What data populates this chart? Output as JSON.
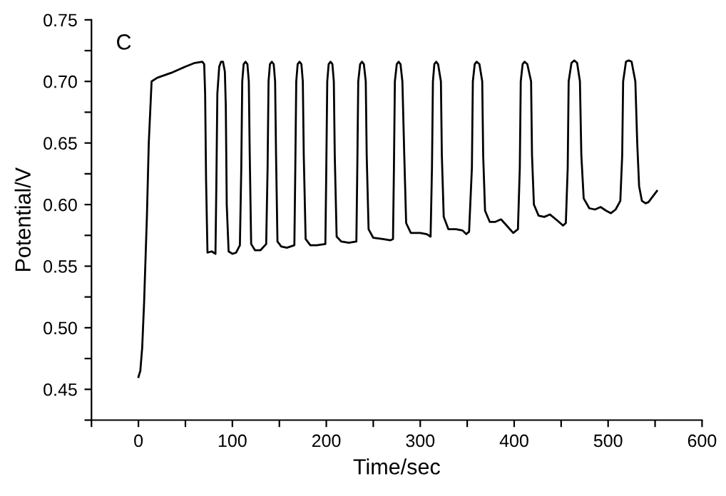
{
  "chart_data": {
    "type": "line",
    "xlabel": "Time/sec",
    "ylabel": "Potential/V",
    "annotations": [
      "C"
    ],
    "xlim": [
      -50,
      600
    ],
    "ylim": [
      0.425,
      0.75
    ],
    "xticks": [
      {
        "value": -50,
        "label": null
      },
      0,
      {
        "value": 50,
        "label": null
      },
      100,
      {
        "value": 150,
        "label": null
      },
      200,
      {
        "value": 250,
        "label": null
      },
      300,
      {
        "value": 350,
        "label": null
      },
      400,
      {
        "value": 450,
        "label": null
      },
      500,
      {
        "value": 550,
        "label": null
      },
      600
    ],
    "yticks": [
      {
        "value": 0.425,
        "label": null
      },
      {
        "value": 0.45,
        "label": "0.45"
      },
      {
        "value": 0.475,
        "label": null
      },
      {
        "value": 0.5,
        "label": "0.50"
      },
      {
        "value": 0.525,
        "label": null
      },
      {
        "value": 0.55,
        "label": "0.55"
      },
      {
        "value": 0.575,
        "label": null
      },
      {
        "value": 0.6,
        "label": "0.60"
      },
      {
        "value": 0.625,
        "label": null
      },
      {
        "value": 0.65,
        "label": "0.65"
      },
      {
        "value": 0.675,
        "label": null
      },
      {
        "value": 0.7,
        "label": "0.70"
      },
      {
        "value": 0.725,
        "label": null
      },
      {
        "value": 0.75,
        "label": "0.75"
      }
    ],
    "grid": false,
    "marker": "none",
    "line_style": "solid",
    "series": [
      {
        "color": "#000000",
        "x": [
          0,
          2,
          4,
          6,
          9,
          11,
          14,
          20,
          35,
          50,
          60,
          68,
          70,
          71,
          72,
          73.5,
          78,
          80,
          82,
          83,
          84,
          86,
          88,
          90,
          92,
          93,
          94,
          96,
          100,
          104,
          108,
          109.5,
          110.5,
          112,
          114,
          116,
          117.5,
          118.5,
          120,
          124,
          130,
          136,
          137.5,
          138.5,
          140,
          142,
          144,
          145.5,
          146.5,
          148,
          152,
          158,
          166,
          167,
          168,
          169.5,
          171.5,
          173.5,
          175,
          176,
          178,
          183,
          190,
          199,
          200,
          201,
          202.5,
          204.5,
          206.5,
          208,
          209,
          211,
          216,
          224,
          232,
          233,
          234,
          236,
          238,
          240,
          242,
          243,
          245,
          250,
          260,
          268,
          271,
          272,
          273,
          275,
          277,
          279,
          281,
          283,
          285,
          290,
          300,
          307,
          311,
          312.5,
          313.5,
          315,
          317,
          319,
          322,
          323,
          325,
          330,
          338,
          345,
          349,
          352,
          355,
          356,
          358,
          360,
          363,
          366,
          367,
          369,
          374,
          380,
          386,
          392,
          399,
          404,
          406,
          407,
          409,
          411,
          414,
          418,
          419,
          421,
          426,
          432,
          438,
          446,
          452,
          455,
          457,
          458,
          461,
          464,
          467,
          470,
          471.5,
          474,
          480,
          486,
          492,
          498,
          503,
          508,
          513,
          515,
          516,
          519,
          522,
          525,
          529,
          531,
          533,
          536,
          540,
          543,
          547,
          552
        ],
        "values": [
          0.46,
          0.465,
          0.484,
          0.52,
          0.59,
          0.65,
          0.7,
          0.703,
          0.707,
          0.712,
          0.715,
          0.716,
          0.714,
          0.69,
          0.62,
          0.561,
          0.562,
          0.561,
          0.56,
          0.62,
          0.69,
          0.712,
          0.716,
          0.716,
          0.708,
          0.68,
          0.6,
          0.562,
          0.56,
          0.561,
          0.567,
          0.63,
          0.7,
          0.714,
          0.716,
          0.714,
          0.7,
          0.64,
          0.568,
          0.563,
          0.563,
          0.568,
          0.63,
          0.7,
          0.714,
          0.716,
          0.714,
          0.7,
          0.64,
          0.57,
          0.566,
          0.565,
          0.567,
          0.63,
          0.7,
          0.714,
          0.716,
          0.714,
          0.7,
          0.64,
          0.572,
          0.567,
          0.567,
          0.568,
          0.63,
          0.7,
          0.714,
          0.716,
          0.714,
          0.7,
          0.64,
          0.574,
          0.57,
          0.569,
          0.57,
          0.63,
          0.7,
          0.714,
          0.716,
          0.714,
          0.7,
          0.64,
          0.58,
          0.573,
          0.572,
          0.571,
          0.572,
          0.63,
          0.7,
          0.714,
          0.716,
          0.714,
          0.7,
          0.64,
          0.585,
          0.577,
          0.577,
          0.576,
          0.574,
          0.63,
          0.7,
          0.714,
          0.716,
          0.714,
          0.7,
          0.64,
          0.59,
          0.58,
          0.58,
          0.579,
          0.576,
          0.578,
          0.63,
          0.7,
          0.714,
          0.716,
          0.714,
          0.7,
          0.64,
          0.595,
          0.586,
          0.586,
          0.588,
          0.583,
          0.577,
          0.58,
          0.63,
          0.7,
          0.714,
          0.716,
          0.714,
          0.7,
          0.64,
          0.6,
          0.591,
          0.59,
          0.592,
          0.587,
          0.583,
          0.585,
          0.63,
          0.7,
          0.715,
          0.717,
          0.715,
          0.7,
          0.64,
          0.605,
          0.597,
          0.596,
          0.598,
          0.595,
          0.593,
          0.596,
          0.603,
          0.64,
          0.7,
          0.716,
          0.717,
          0.716,
          0.7,
          0.65,
          0.615,
          0.603,
          0.601,
          0.602,
          0.606,
          0.611
        ]
      }
    ]
  }
}
